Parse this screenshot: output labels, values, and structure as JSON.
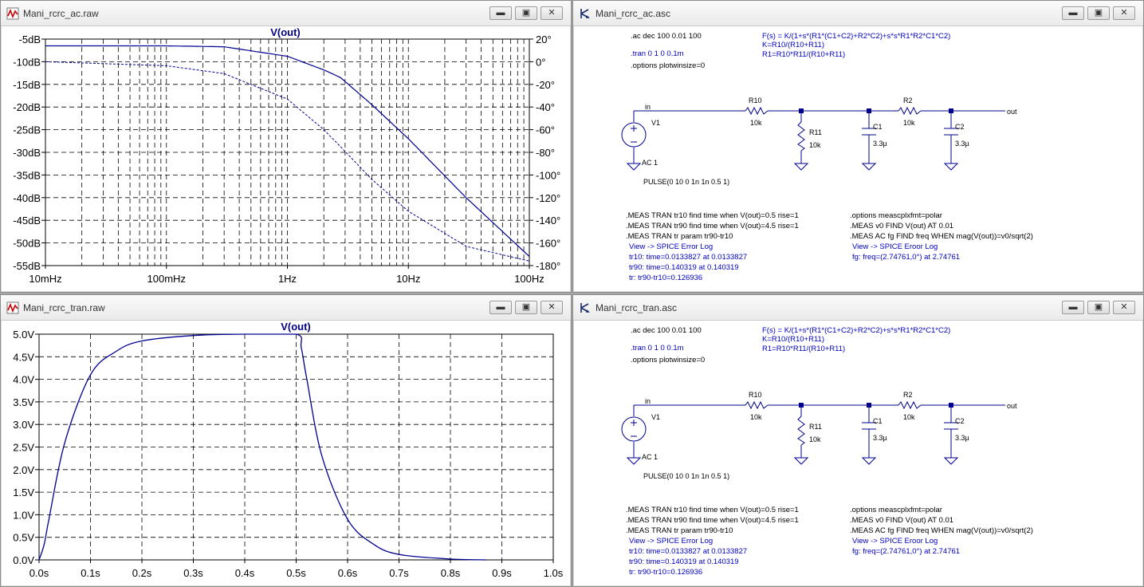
{
  "windows": {
    "ac_raw": {
      "title": "Mani_rcrc_ac.raw"
    },
    "ac_asc": {
      "title": "Mani_rcrc_ac.asc"
    },
    "tran_raw": {
      "title": "Mani_rcrc_tran.raw"
    },
    "tran_asc": {
      "title": "Mani_rcrc_tran.asc"
    }
  },
  "window_buttons": {
    "minimize": "▬",
    "restore": "▣",
    "close": "✕"
  },
  "colors": {
    "trace": "#000090",
    "grid": "#000000",
    "schematic": "#00008c",
    "directive_blue": "#0000c0"
  },
  "ac_plot": {
    "trace_label": "V(out)",
    "left_ticks": [
      "-5dB",
      "-10dB",
      "-15dB",
      "-20dB",
      "-25dB",
      "-30dB",
      "-35dB",
      "-40dB",
      "-45dB",
      "-50dB",
      "-55dB"
    ],
    "right_ticks": [
      "20°",
      "0°",
      "-20°",
      "-40°",
      "-60°",
      "-80°",
      "-100°",
      "-120°",
      "-140°",
      "-160°",
      "-180°"
    ],
    "x_ticks": [
      "10mHz",
      "100mHz",
      "1Hz",
      "10Hz",
      "100Hz"
    ]
  },
  "tran_plot": {
    "trace_label": "V(out)",
    "y_ticks": [
      "5.0V",
      "4.5V",
      "4.0V",
      "3.5V",
      "3.0V",
      "2.5V",
      "2.0V",
      "1.5V",
      "1.0V",
      "0.5V",
      "0.0V"
    ],
    "x_ticks": [
      "0.0s",
      "0.1s",
      "0.2s",
      "0.3s",
      "0.4s",
      "0.5s",
      "0.6s",
      "0.7s",
      "0.8s",
      "0.9s",
      "1.0s"
    ]
  },
  "chart_data": [
    {
      "type": "line",
      "xlabel": "frequency",
      "x_scale": "log",
      "xlim": [
        0.01,
        100
      ],
      "ylim_left_db": [
        -55,
        -5
      ],
      "ylim_right_deg": [
        -180,
        20
      ],
      "x": [
        0.01,
        0.1,
        0.3,
        1,
        2,
        2.75,
        5,
        10,
        30,
        100
      ],
      "series": [
        {
          "name": "V(out)",
          "unit": "dB",
          "values": [
            -6.5,
            -6.5,
            -6.7,
            -8.8,
            -11.8,
            -13.5,
            -19.5,
            -27,
            -40,
            -53
          ]
        },
        {
          "name": "V(out)",
          "unit": "deg",
          "style": "dashed",
          "values": [
            0,
            -3.5,
            -10.5,
            -33,
            -60,
            -75,
            -104,
            -132,
            -163,
            -176
          ]
        }
      ]
    },
    {
      "type": "line",
      "xlabel": "time",
      "xlim": [
        0,
        1
      ],
      "ylim": [
        0,
        5
      ],
      "x": [
        0,
        0.01,
        0.02,
        0.05,
        0.1,
        0.15,
        0.2,
        0.3,
        0.4,
        0.5,
        0.51,
        0.52,
        0.55,
        0.6,
        0.65,
        0.7,
        0.8,
        0.87
      ],
      "series": [
        {
          "name": "V(out)",
          "values": [
            0,
            0.35,
            0.95,
            2.6,
            4.1,
            4.62,
            4.85,
            4.97,
            5.0,
            5.0,
            4.7,
            4.05,
            2.3,
            0.9,
            0.35,
            0.12,
            0.02,
            0.0
          ]
        }
      ]
    }
  ],
  "schematic": {
    "net_in": "in",
    "net_out": "out",
    "v1": "V1",
    "v1_value": "AC 1",
    "v1_pulse": "PULSE(0 10 0 1n 1n 0.5 1)",
    "r10": "R10",
    "r10_val": "10k",
    "r11": "R11",
    "r11_val": "10k",
    "c1": "C1",
    "c1_val": "3.3µ",
    "r2": "R2",
    "r2_val": "10k",
    "c2": "C2",
    "c2_val": "3.3µ",
    "dir_ac": ".ac dec 100 0.01 100",
    "dir_tran": ".tran 0 1 0 0.1m",
    "dir_options": ".options plotwinsize=0",
    "formula": [
      "F(s) = K/(1+s*(R1*(C1+C2)+R2*C2)+s*s*R1*R2*C1*C2)",
      "K=R10/(R10+R11)",
      "R1=R10*R11/(R10+R11)"
    ],
    "meas_left": [
      ".MEAS TRAN tr10 find time when V(out)=0.5 rise=1",
      ".MEAS TRAN tr90 find time when V(out)=4.5 rise=1",
      ".MEAS TRAN tr param tr90-tr10"
    ],
    "log_left": [
      "View -> SPICE Error Log",
      "tr10: time=0.0133827 at 0.0133827",
      "tr90: time=0.140319 at 0.140319",
      "tr: tr90-tr10=0.126936"
    ],
    "meas_right": [
      ".options meascplxfmt=polar",
      ".MEAS v0 FIND V(out) AT 0.01",
      ".MEAS AC fg FIND freq WHEN mag(V(out))=v0/sqrt(2)"
    ],
    "log_right": [
      "View -> SPICE Eroor Log",
      "fg: freq=(2.74761,0°) at 2.74761"
    ]
  }
}
